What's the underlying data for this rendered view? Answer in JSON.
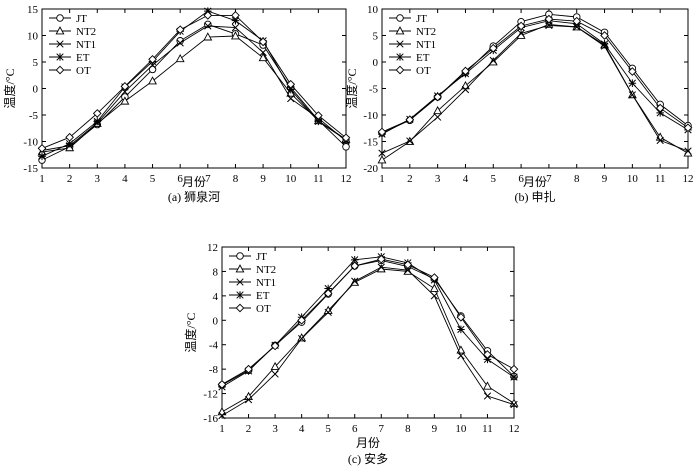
{
  "chart_data": [
    {
      "type": "line",
      "caption": "(a) 狮泉河",
      "xlabel": "月份",
      "ylabel": "温度/°C",
      "x": [
        1,
        2,
        3,
        4,
        5,
        6,
        7,
        8,
        9,
        10,
        11,
        12
      ],
      "xlim": [
        1,
        12
      ],
      "ylim": [
        -15,
        15
      ],
      "yticks": [
        -15,
        -10,
        -5,
        0,
        5,
        10,
        15
      ],
      "grid": false,
      "legend_position": "top-left",
      "series": [
        {
          "name": "JT",
          "marker": "circle",
          "values": [
            -13.5,
            -11.0,
            -6.8,
            -1.6,
            3.6,
            9.0,
            12.1,
            10.3,
            8.2,
            0.2,
            -6.0,
            -11.0
          ]
        },
        {
          "name": "NT2",
          "marker": "triangle",
          "values": [
            -12.0,
            -11.2,
            -6.6,
            -2.4,
            1.4,
            5.6,
            9.7,
            9.9,
            5.8,
            -0.9,
            -6.1,
            -9.6
          ]
        },
        {
          "name": "NT1",
          "marker": "x",
          "values": [
            -11.7,
            -10.8,
            -6.5,
            -0.6,
            4.4,
            8.6,
            11.8,
            11.5,
            6.8,
            -1.9,
            -5.6,
            -9.9
          ]
        },
        {
          "name": "ET",
          "marker": "star",
          "values": [
            -12.8,
            -10.4,
            -6.2,
            0.3,
            5.1,
            10.8,
            14.6,
            12.8,
            9.0,
            -0.2,
            -6.2,
            -9.7
          ]
        },
        {
          "name": "OT",
          "marker": "diamond",
          "values": [
            -11.3,
            -9.2,
            -4.7,
            0.4,
            5.5,
            11.1,
            13.8,
            13.8,
            8.8,
            0.8,
            -5.1,
            -9.3
          ]
        }
      ]
    },
    {
      "type": "line",
      "caption": "(b) 申扎",
      "xlabel": "月份",
      "ylabel": "温度/°C",
      "x": [
        1,
        2,
        3,
        4,
        5,
        6,
        7,
        8,
        9,
        10,
        11,
        12
      ],
      "xlim": [
        1,
        12
      ],
      "ylim": [
        -20,
        10
      ],
      "yticks": [
        -20,
        -15,
        -10,
        -5,
        0,
        5,
        10
      ],
      "grid": false,
      "legend_position": "top-left",
      "series": [
        {
          "name": "JT",
          "marker": "circle",
          "values": [
            -13.4,
            -11.0,
            -6.6,
            -2.0,
            3.0,
            7.6,
            9.0,
            8.5,
            5.6,
            -1.2,
            -8.0,
            -12.0
          ]
        },
        {
          "name": "NT2",
          "marker": "triangle",
          "values": [
            -18.5,
            -15.0,
            -9.2,
            -4.5,
            0.0,
            5.0,
            7.1,
            6.6,
            3.2,
            -6.2,
            -14.2,
            -17.2
          ]
        },
        {
          "name": "NT1",
          "marker": "x",
          "values": [
            -17.2,
            -14.9,
            -10.4,
            -5.2,
            0.3,
            5.4,
            6.9,
            6.6,
            3.0,
            -6.2,
            -14.8,
            -16.8
          ]
        },
        {
          "name": "ET",
          "marker": "star",
          "values": [
            -13.6,
            -10.8,
            -6.4,
            -2.2,
            2.2,
            6.5,
            7.8,
            7.2,
            3.4,
            -4.0,
            -9.6,
            -12.8
          ]
        },
        {
          "name": "OT",
          "marker": "diamond",
          "values": [
            -13.2,
            -10.9,
            -6.6,
            -1.7,
            2.6,
            6.8,
            8.1,
            7.7,
            5.0,
            -1.8,
            -8.7,
            -12.4
          ]
        }
      ]
    },
    {
      "type": "line",
      "caption": "(c) 安多",
      "xlabel": "月份",
      "ylabel": "温度/°C",
      "x": [
        1,
        2,
        3,
        4,
        5,
        6,
        7,
        8,
        9,
        10,
        11,
        12
      ],
      "xlim": [
        1,
        12
      ],
      "ylim": [
        -16,
        12
      ],
      "yticks": [
        -16,
        -12,
        -8,
        -4,
        0,
        4,
        8,
        12
      ],
      "grid": false,
      "legend_position": "top-left",
      "series": [
        {
          "name": "JT",
          "marker": "circle",
          "values": [
            -10.6,
            -8.2,
            -4.1,
            -0.3,
            4.3,
            8.9,
            9.8,
            8.8,
            6.8,
            0.7,
            -5.0,
            -9.2
          ]
        },
        {
          "name": "NT2",
          "marker": "triangle",
          "values": [
            -15.0,
            -12.5,
            -7.6,
            -2.9,
            1.6,
            6.2,
            8.4,
            8.0,
            5.2,
            -4.9,
            -10.8,
            -13.6
          ]
        },
        {
          "name": "NT1",
          "marker": "x",
          "values": [
            -15.6,
            -13.0,
            -8.8,
            -3.0,
            1.3,
            6.4,
            8.7,
            8.2,
            4.0,
            -5.8,
            -12.4,
            -13.8
          ]
        },
        {
          "name": "ET",
          "marker": "star",
          "values": [
            -10.9,
            -8.3,
            -4.1,
            0.5,
            5.2,
            9.9,
            10.4,
            9.4,
            6.6,
            -1.5,
            -6.4,
            -9.3
          ]
        },
        {
          "name": "OT",
          "marker": "diamond",
          "values": [
            -10.5,
            -8.0,
            -4.2,
            0.0,
            4.4,
            8.9,
            10.0,
            9.1,
            7.0,
            0.5,
            -5.6,
            -8.0
          ]
        }
      ]
    }
  ]
}
